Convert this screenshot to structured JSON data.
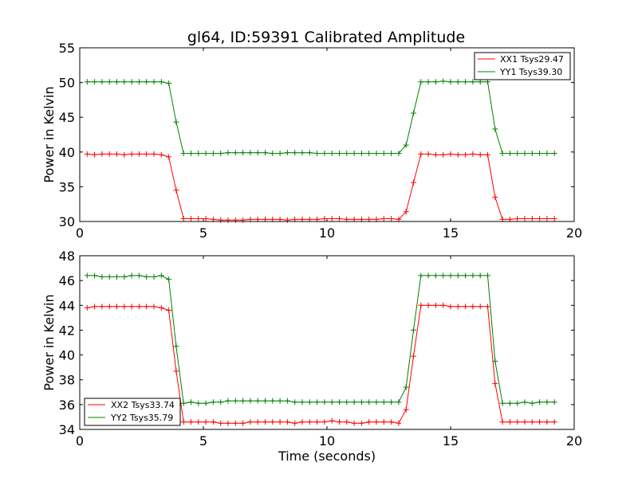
{
  "chart_data": [
    {
      "type": "line",
      "title": "gl64, ID:59391 Calibrated Amplitude",
      "xlabel": "",
      "ylabel": "Power in Kelvin",
      "xlim": [
        0,
        20
      ],
      "ylim": [
        30,
        55
      ],
      "x_ticks": [
        "0",
        "5",
        "10",
        "15",
        "20"
      ],
      "y_ticks": [
        "30",
        "35",
        "40",
        "45",
        "50",
        "55"
      ],
      "legend_position": "top-right",
      "grid": false,
      "x": [
        0.3,
        0.6,
        0.9,
        1.2,
        1.5,
        1.8,
        2.1,
        2.4,
        2.7,
        3.0,
        3.3,
        3.6,
        3.9,
        4.2,
        4.5,
        4.8,
        5.1,
        5.4,
        5.7,
        6.0,
        6.3,
        6.6,
        6.9,
        7.2,
        7.5,
        7.8,
        8.1,
        8.4,
        8.7,
        9.0,
        9.3,
        9.6,
        9.9,
        10.2,
        10.5,
        10.8,
        11.1,
        11.4,
        11.7,
        12.0,
        12.3,
        12.6,
        12.9,
        13.2,
        13.5,
        13.8,
        14.1,
        14.4,
        14.7,
        15.0,
        15.3,
        15.6,
        15.9,
        16.2,
        16.5,
        16.8,
        17.1,
        17.4,
        17.7,
        18.0,
        18.3,
        18.6,
        18.9,
        19.2
      ],
      "series": [
        {
          "name": "XX1 Tsys29.47",
          "color": "#ff0000",
          "values": [
            39.7,
            39.6,
            39.7,
            39.7,
            39.7,
            39.6,
            39.7,
            39.7,
            39.7,
            39.7,
            39.6,
            39.3,
            34.5,
            30.4,
            30.4,
            30.4,
            30.4,
            30.3,
            30.2,
            30.2,
            30.2,
            30.2,
            30.3,
            30.3,
            30.3,
            30.3,
            30.3,
            30.2,
            30.3,
            30.3,
            30.3,
            30.3,
            30.4,
            30.4,
            30.4,
            30.3,
            30.3,
            30.3,
            30.3,
            30.3,
            30.4,
            30.4,
            30.3,
            31.4,
            35.6,
            39.7,
            39.7,
            39.6,
            39.6,
            39.7,
            39.6,
            39.6,
            39.7,
            39.6,
            39.6,
            33.5,
            30.3,
            30.3,
            30.4,
            30.4,
            30.4,
            30.4,
            30.4,
            30.4
          ]
        },
        {
          "name": "YY1 Tsys39.30",
          "color": "#008000",
          "values": [
            50.1,
            50.1,
            50.1,
            50.1,
            50.1,
            50.1,
            50.1,
            50.1,
            50.1,
            50.1,
            50.1,
            49.9,
            44.3,
            39.8,
            39.8,
            39.8,
            39.8,
            39.8,
            39.8,
            39.9,
            39.9,
            39.9,
            39.9,
            39.9,
            39.9,
            39.8,
            39.8,
            39.9,
            39.9,
            39.9,
            39.9,
            39.8,
            39.8,
            39.8,
            39.8,
            39.8,
            39.8,
            39.8,
            39.8,
            39.8,
            39.8,
            39.8,
            39.8,
            41.0,
            45.6,
            50.1,
            50.1,
            50.1,
            50.2,
            50.1,
            50.1,
            50.1,
            50.1,
            50.1,
            50.1,
            43.3,
            39.8,
            39.8,
            39.8,
            39.8,
            39.8,
            39.8,
            39.8,
            39.8
          ]
        }
      ]
    },
    {
      "type": "line",
      "title": "",
      "xlabel": "Time (seconds)",
      "ylabel": "Power in Kelvin",
      "xlim": [
        0,
        20
      ],
      "ylim": [
        34,
        48
      ],
      "x_ticks": [
        "0",
        "5",
        "10",
        "15",
        "20"
      ],
      "y_ticks": [
        "34",
        "36",
        "38",
        "40",
        "42",
        "44",
        "46",
        "48"
      ],
      "legend_position": "bottom-left",
      "grid": false,
      "x": [
        0.3,
        0.6,
        0.9,
        1.2,
        1.5,
        1.8,
        2.1,
        2.4,
        2.7,
        3.0,
        3.3,
        3.6,
        3.9,
        4.2,
        4.5,
        4.8,
        5.1,
        5.4,
        5.7,
        6.0,
        6.3,
        6.6,
        6.9,
        7.2,
        7.5,
        7.8,
        8.1,
        8.4,
        8.7,
        9.0,
        9.3,
        9.6,
        9.9,
        10.2,
        10.5,
        10.8,
        11.1,
        11.4,
        11.7,
        12.0,
        12.3,
        12.6,
        12.9,
        13.2,
        13.5,
        13.8,
        14.1,
        14.4,
        14.7,
        15.0,
        15.3,
        15.6,
        15.9,
        16.2,
        16.5,
        16.8,
        17.1,
        17.4,
        17.7,
        18.0,
        18.3,
        18.6,
        18.9,
        19.2
      ],
      "series": [
        {
          "name": "XX2 Tsys33.74",
          "color": "#ff0000",
          "values": [
            43.8,
            43.9,
            43.9,
            43.9,
            43.9,
            43.9,
            43.9,
            43.9,
            43.9,
            43.9,
            43.8,
            43.6,
            38.7,
            34.6,
            34.6,
            34.6,
            34.6,
            34.6,
            34.5,
            34.5,
            34.5,
            34.5,
            34.6,
            34.6,
            34.6,
            34.6,
            34.6,
            34.6,
            34.5,
            34.6,
            34.6,
            34.6,
            34.6,
            34.7,
            34.6,
            34.6,
            34.5,
            34.5,
            34.6,
            34.6,
            34.6,
            34.6,
            34.5,
            35.6,
            39.9,
            44.0,
            44.0,
            44.0,
            44.0,
            43.9,
            43.9,
            43.9,
            43.9,
            43.9,
            43.9,
            37.7,
            34.6,
            34.6,
            34.6,
            34.6,
            34.6,
            34.6,
            34.6,
            34.6
          ]
        },
        {
          "name": "YY2 Tsys35.79",
          "color": "#008000",
          "values": [
            46.4,
            46.4,
            46.3,
            46.3,
            46.3,
            46.3,
            46.4,
            46.4,
            46.3,
            46.3,
            46.4,
            46.1,
            40.7,
            36.1,
            36.2,
            36.1,
            36.1,
            36.2,
            36.2,
            36.3,
            36.3,
            36.3,
            36.3,
            36.3,
            36.3,
            36.3,
            36.3,
            36.3,
            36.2,
            36.2,
            36.2,
            36.2,
            36.2,
            36.2,
            36.2,
            36.2,
            36.2,
            36.2,
            36.2,
            36.2,
            36.2,
            36.2,
            36.2,
            37.4,
            42.0,
            46.4,
            46.4,
            46.4,
            46.4,
            46.4,
            46.4,
            46.4,
            46.4,
            46.4,
            46.4,
            39.5,
            36.1,
            36.1,
            36.1,
            36.2,
            36.1,
            36.2,
            36.2,
            36.2
          ]
        }
      ]
    }
  ]
}
